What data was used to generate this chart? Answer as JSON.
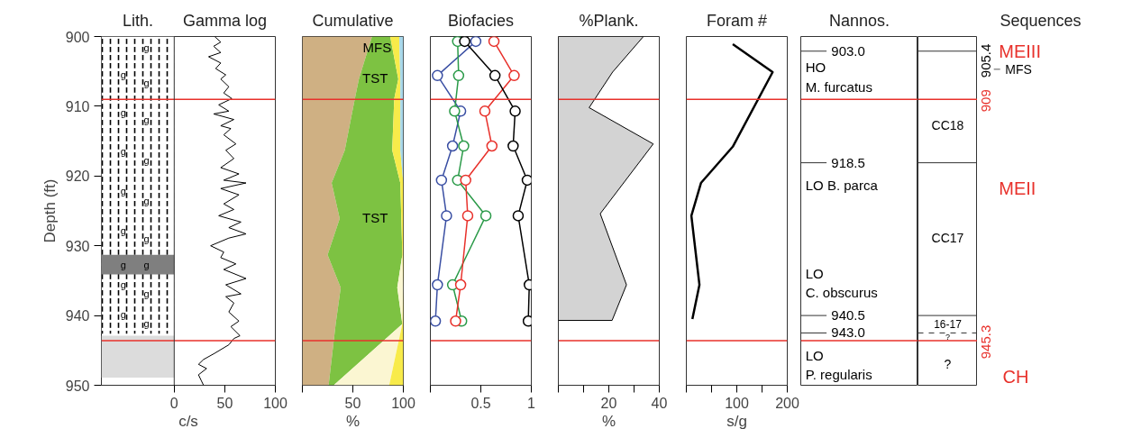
{
  "chart_data": [
    {
      "type": "line",
      "orientation": "horizontal",
      "title": "Gamma log",
      "xlabel": "c/s",
      "ylabel": "Depth (ft)",
      "color": "#000000",
      "xlim": [
        -72,
        100
      ],
      "xticks": [
        0,
        50,
        100
      ],
      "ylim": [
        950,
        900
      ],
      "yticks": [
        900,
        910,
        920,
        930,
        940,
        950
      ],
      "bands": [
        {
          "axis": "y",
          "from": 900,
          "to": 942.6,
          "color": "#ffffff"
        },
        {
          "axis": "y",
          "from": 931.3,
          "to": 934.1,
          "color": "#7f7f7f"
        },
        {
          "axis": "y",
          "from": 942.9,
          "to": 948.9,
          "color": "#dcdcdc"
        }
      ],
      "annotations": [
        "Lith.",
        "g",
        "g",
        "g",
        "g",
        "g",
        "g",
        "g",
        "g",
        "g",
        "g",
        "g",
        "g",
        "g",
        "g",
        "g",
        "g",
        "g"
      ],
      "x": [
        900.0,
        900.8,
        901.4,
        902.3,
        902.9,
        903.8,
        904.6,
        905.5,
        906.1,
        907.2,
        908.1,
        908.9,
        909.8,
        910.7,
        911.1,
        911.9,
        912.8,
        913.2,
        914.1,
        915.4,
        916.3,
        917.5,
        918.8,
        919.7,
        920.6,
        921.0,
        921.8,
        922.7,
        924.0,
        924.8,
        925.7,
        926.6,
        927.4,
        928.3,
        928.9,
        930.0,
        930.9,
        931.7,
        932.6,
        933.4,
        934.7,
        935.6,
        936.9,
        937.3,
        938.2,
        939.5,
        940.8,
        941.6,
        942.9,
        943.3,
        944.2,
        945.5,
        946.3,
        947.0,
        947.6,
        948.5,
        949.4,
        950.0
      ],
      "values": [
        40,
        46,
        39,
        46,
        34,
        46,
        41,
        51,
        46,
        54,
        49,
        57,
        44,
        54,
        39,
        59,
        46,
        56,
        49,
        61,
        51,
        59,
        46,
        64,
        49,
        71,
        46,
        64,
        49,
        59,
        44,
        66,
        54,
        71,
        54,
        36,
        49,
        46,
        61,
        49,
        71,
        51,
        66,
        51,
        59,
        54,
        64,
        56,
        65,
        59,
        54,
        39,
        29,
        24,
        32,
        24,
        27,
        29
      ],
      "ref_lines": [
        {
          "axis": "y",
          "value": 909.0,
          "color": "#e8312b"
        },
        {
          "axis": "y",
          "value": 943.6,
          "color": "#e8312b"
        }
      ]
    },
    {
      "type": "area",
      "stacked": true,
      "orientation": "horizontal",
      "title": "Cumulative",
      "xlabel": "%",
      "xlim": [
        0,
        100
      ],
      "xticks": [
        {
          "value": 0,
          "label": null
        },
        50,
        100
      ],
      "ylim": [
        950,
        900
      ],
      "tick_labels": "x",
      "x": [
        900.0,
        906.1,
        908.9,
        916.3,
        921.0,
        926.1,
        931.3,
        936.0,
        941.2,
        950.0
      ],
      "series": [
        {
          "color": "#cfb083",
          "values": [
            69,
            56,
            52,
            42,
            29,
            37,
            25,
            38,
            33,
            26
          ]
        },
        {
          "color": "#7dc242",
          "values": [
            18,
            39,
            39,
            47,
            68,
            61,
            74,
            56,
            66,
            5
          ]
        },
        {
          "color": "#fbf6d2",
          "values": [
            0,
            0,
            0,
            0,
            0,
            0,
            0,
            6,
            0,
            55
          ]
        },
        {
          "color": "#f8eb4a",
          "values": [
            9,
            2,
            6,
            8,
            3,
            2,
            1,
            0,
            1,
            14
          ]
        },
        {
          "color": "#a8d8ea",
          "values": [
            4,
            3,
            3,
            3,
            0,
            0,
            0,
            0,
            0,
            0
          ]
        }
      ],
      "annotations": [
        "MFS",
        "TST",
        "TST"
      ],
      "ref_lines": [
        {
          "axis": "y",
          "value": 909.0,
          "color": "#e8312b"
        },
        {
          "axis": "y",
          "value": 943.6,
          "color": "#e8312b"
        }
      ]
    },
    {
      "type": "line",
      "orientation": "horizontal",
      "title": "Biofacies",
      "marker": "circle",
      "xlim": [
        0,
        1
      ],
      "xticks": [
        {
          "value": 0,
          "label": null
        },
        0.5,
        1
      ],
      "ylim": [
        950,
        900
      ],
      "tick_labels": "x",
      "x": [
        900.7,
        905.6,
        910.7,
        915.7,
        920.6,
        925.7,
        935.6,
        940.8
      ],
      "series": [
        {
          "color": "#3a4fa3",
          "values": [
            0.45,
            0.07,
            0.3,
            0.22,
            0.11,
            0.16,
            0.07,
            0.05
          ]
        },
        {
          "color": "#2a9a48",
          "values": [
            0.27,
            0.28,
            0.24,
            0.33,
            0.27,
            0.55,
            0.22,
            0.31
          ]
        },
        {
          "color": "#e8312b",
          "values": [
            0.63,
            0.83,
            0.54,
            0.61,
            0.35,
            0.37,
            0.3,
            0.25
          ]
        },
        {
          "color": "#000000",
          "values": [
            0.34,
            0.64,
            0.84,
            0.82,
            0.96,
            0.87,
            0.98,
            0.97
          ]
        }
      ],
      "ref_lines": [
        {
          "axis": "y",
          "value": 909.0,
          "color": "#e8312b"
        },
        {
          "axis": "y",
          "value": 943.6,
          "color": "#e8312b"
        }
      ]
    },
    {
      "type": "area",
      "orientation": "horizontal",
      "title": "%Plank.",
      "xlabel": "%",
      "color": "#d3d3d3",
      "xlim": [
        0,
        40
      ],
      "xticks": [
        {
          "value": 0,
          "label": null
        },
        {
          "value": 10,
          "label": null
        },
        20,
        {
          "value": 30,
          "label": null
        },
        40
      ],
      "ylim": [
        950,
        900
      ],
      "tick_labels": "x",
      "x": [
        900.0,
        905.1,
        910.2,
        915.4,
        925.4,
        935.6,
        940.7
      ],
      "values": [
        33.7,
        21.5,
        12.2,
        37.6,
        16.6,
        27.0,
        21.3
      ],
      "ref_lines": [
        {
          "axis": "y",
          "value": 909.0,
          "color": "#e8312b"
        },
        {
          "axis": "y",
          "value": 943.6,
          "color": "#e8312b"
        }
      ]
    },
    {
      "type": "line",
      "orientation": "horizontal",
      "title": "Foram #",
      "xlabel": "s/g",
      "color": "#000000",
      "xlim": [
        0,
        200
      ],
      "xticks": [
        {
          "value": 0,
          "label": null
        },
        {
          "value": 50,
          "label": null
        },
        100,
        {
          "value": 150,
          "label": null
        },
        200
      ],
      "ylim": [
        950,
        900
      ],
      "tick_labels": "x",
      "x": [
        901.1,
        905.1,
        915.8,
        921.0,
        925.7,
        935.6,
        940.5
      ],
      "values": [
        92,
        171,
        92,
        29,
        10,
        26,
        12
      ],
      "ref_lines": [
        {
          "axis": "y",
          "value": 909.0,
          "color": "#e8312b"
        },
        {
          "axis": "y",
          "value": 943.6,
          "color": "#e8312b"
        }
      ]
    },
    {
      "type": "other",
      "title": "Nannos.",
      "annotations": [
        "903.0",
        "HO",
        "M. furcatus",
        "918.5",
        "LO B. parca",
        "LO",
        "C. obscurus",
        "940.5",
        "943.0",
        "LO",
        "P. regularis"
      ]
    },
    {
      "type": "other",
      "annotations": [
        "CC18",
        "CC17",
        "16-17",
        "?",
        "?"
      ]
    },
    {
      "type": "other",
      "title": "Sequences",
      "annotations": [
        "MEIII",
        "905.4",
        "MFS",
        "909",
        "MEII",
        "945.3",
        "CH"
      ]
    }
  ]
}
